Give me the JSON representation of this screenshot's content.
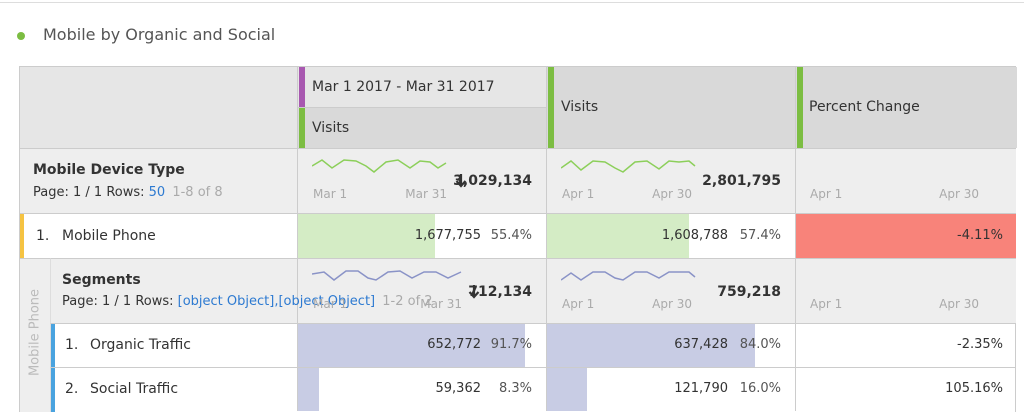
{
  "title": "Mobile by Organic and Social",
  "columns": [
    {
      "range": "Mar 1 2017 - Mar 31 2017",
      "metric": "Visits"
    },
    {
      "metric": "Visits"
    },
    {
      "metric": "Percent Change"
    }
  ],
  "dimension": {
    "name": "Mobile Device Type",
    "page": "Page: 1 / 1",
    "rows_label": "Rows:",
    "rows": "50",
    "count": "1-8 of 8",
    "totals": [
      {
        "start": "Mar 1",
        "end": "Mar 31",
        "total": "3,029,134"
      },
      {
        "start": "Apr 1",
        "end": "Apr 30",
        "total": "2,801,795"
      },
      {
        "start": "Apr 1",
        "end": "Apr 30"
      }
    ]
  },
  "rows": [
    {
      "index": "1.",
      "label": "Mobile Phone",
      "cells": [
        {
          "value": "1,677,755",
          "share": {
            "value": 55.4,
            "label": "55.4%"
          }
        },
        {
          "value": "1,608,788",
          "share": {
            "value": 57.4,
            "label": "57.4%"
          }
        },
        {
          "change": "-4.11%"
        }
      ]
    }
  ],
  "breakdown": {
    "parent": "Mobile Phone",
    "name": "Segments",
    "page": "Page: 1 / 1",
    "rows_label": "Rows:",
    "rows": [
      {
        "index": "1.",
        "label": "Organic Traffic",
        "cells": [
          {
            "value": "652,772",
            "share": {
              "value": 91.7,
              "label": "91.7%"
            }
          },
          {
            "value": "637,428",
            "share": {
              "value": 84.0,
              "label": "84.0%"
            }
          },
          {
            "change": "-2.35%"
          }
        ]
      },
      {
        "index": "2.",
        "label": "Social Traffic",
        "cells": [
          {
            "value": "59,362",
            "share": {
              "value": 8.3,
              "label": "8.3%"
            }
          },
          {
            "value": "121,790",
            "share": {
              "value": 16.0,
              "label": "16.0%"
            }
          },
          {
            "change": "105.16%"
          }
        ]
      }
    ],
    "count": "1-2 of 2",
    "totals": [
      {
        "start": "Mar 1",
        "end": "Mar 31",
        "total": "712,134"
      },
      {
        "start": "Apr 1",
        "end": "Apr 30",
        "total": "759,218"
      },
      {
        "start": "Apr 1",
        "end": "Apr 30"
      }
    ]
  }
}
